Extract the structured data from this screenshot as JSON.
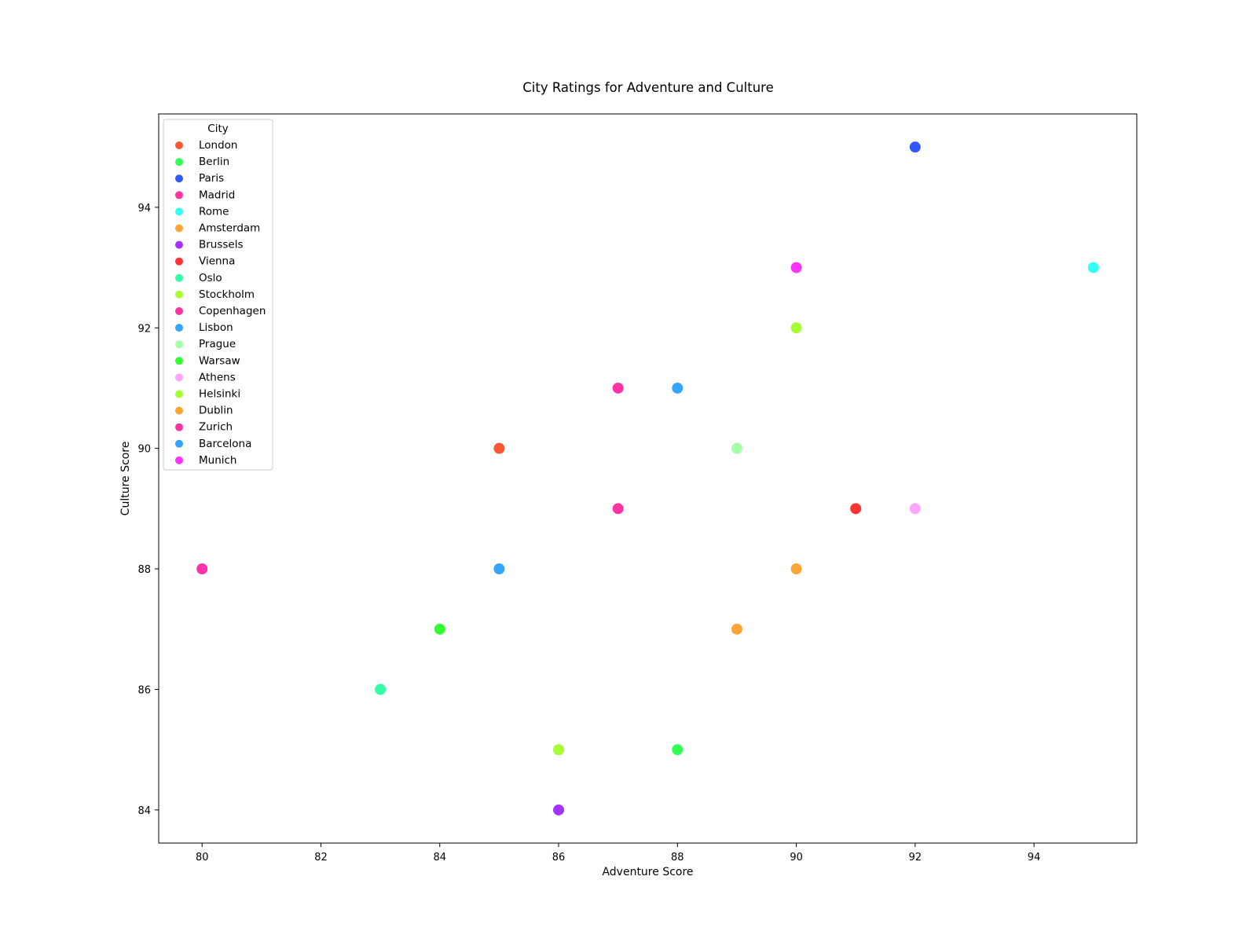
{
  "chart_data": {
    "type": "scatter",
    "title": "City Ratings for Adventure and Culture",
    "xlabel": "Adventure Score",
    "ylabel": "Culture Score",
    "xlim": [
      79.27,
      95.73
    ],
    "ylim": [
      83.45,
      95.55
    ],
    "xticks": [
      80,
      82,
      84,
      86,
      88,
      90,
      92,
      94
    ],
    "yticks": [
      84,
      86,
      88,
      90,
      92,
      94
    ],
    "grid": false,
    "legend_title": "City",
    "legend_position": "upper-left",
    "series": [
      {
        "name": "London",
        "color": "#ff5733",
        "points": [
          {
            "x": 85,
            "y": 90
          }
        ]
      },
      {
        "name": "Berlin",
        "color": "#33ff57",
        "points": [
          {
            "x": 88,
            "y": 85
          }
        ]
      },
      {
        "name": "Paris",
        "color": "#3357ff",
        "points": [
          {
            "x": 92,
            "y": 95
          }
        ]
      },
      {
        "name": "Madrid",
        "color": "#ff33a1",
        "points": [
          {
            "x": 87,
            "y": 89
          }
        ]
      },
      {
        "name": "Rome",
        "color": "#33fff5",
        "points": [
          {
            "x": 95,
            "y": 93
          }
        ]
      },
      {
        "name": "Amsterdam",
        "color": "#ffa533",
        "points": [
          {
            "x": 89,
            "y": 87
          }
        ]
      },
      {
        "name": "Brussels",
        "color": "#a533ff",
        "points": [
          {
            "x": 86,
            "y": 84
          }
        ]
      },
      {
        "name": "Vienna",
        "color": "#ff3333",
        "points": [
          {
            "x": 91,
            "y": 89
          }
        ]
      },
      {
        "name": "Oslo",
        "color": "#33ffa5",
        "points": [
          {
            "x": 83,
            "y": 86
          }
        ]
      },
      {
        "name": "Stockholm",
        "color": "#a5ff33",
        "points": [
          {
            "x": 90,
            "y": 92
          }
        ]
      },
      {
        "name": "Copenhagen",
        "color": "#ff33a5",
        "points": [
          {
            "x": 80,
            "y": 88
          }
        ]
      },
      {
        "name": "Lisbon",
        "color": "#33a5ff",
        "points": [
          {
            "x": 85,
            "y": 88
          }
        ]
      },
      {
        "name": "Prague",
        "color": "#a5ffa5",
        "points": [
          {
            "x": 89,
            "y": 90
          }
        ]
      },
      {
        "name": "Warsaw",
        "color": "#33ff33",
        "points": [
          {
            "x": 84,
            "y": 87
          }
        ]
      },
      {
        "name": "Athens",
        "color": "#ffa5ff",
        "points": [
          {
            "x": 92,
            "y": 89
          }
        ]
      },
      {
        "name": "Helsinki",
        "color": "#a5ff33",
        "points": [
          {
            "x": 86,
            "y": 85
          }
        ]
      },
      {
        "name": "Dublin",
        "color": "#ffa533",
        "points": [
          {
            "x": 90,
            "y": 88
          }
        ]
      },
      {
        "name": "Zurich",
        "color": "#ff33a5",
        "points": [
          {
            "x": 87,
            "y": 91
          }
        ]
      },
      {
        "name": "Barcelona",
        "color": "#33a5ff",
        "points": [
          {
            "x": 88,
            "y": 91
          }
        ]
      },
      {
        "name": "Munich",
        "color": "#ff33ff",
        "points": [
          {
            "x": 90,
            "y": 93
          }
        ]
      }
    ]
  }
}
